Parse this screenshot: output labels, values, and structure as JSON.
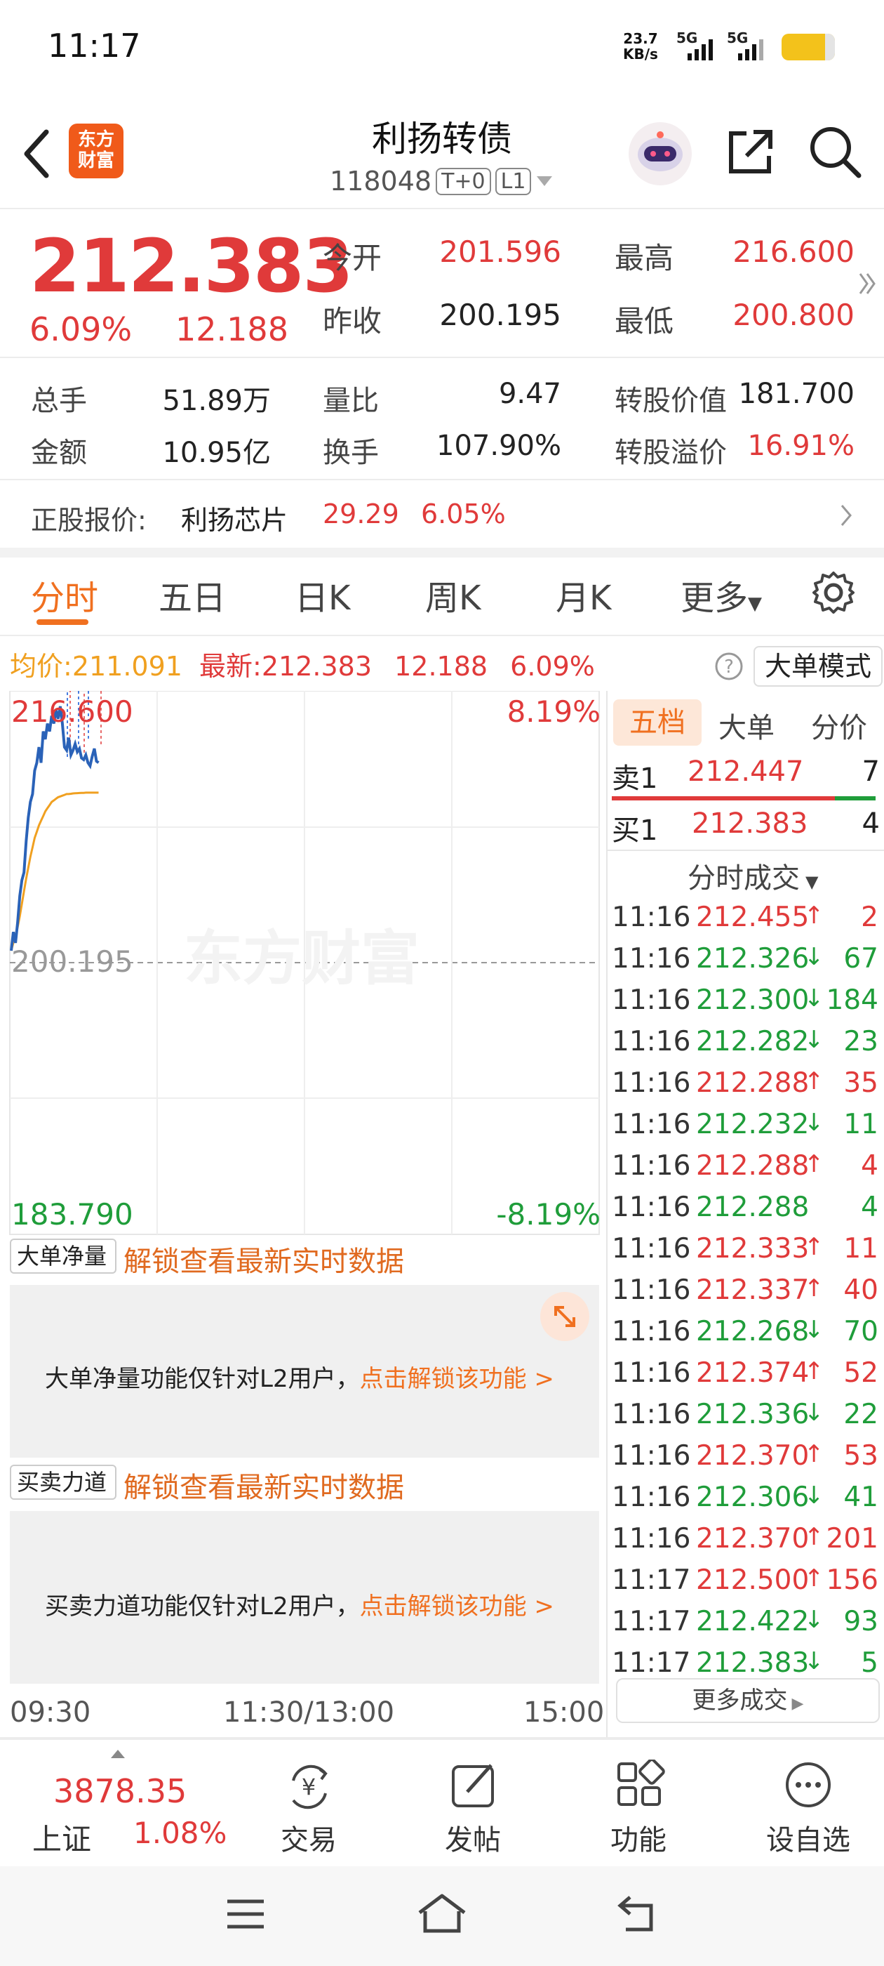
{
  "status_bar": {
    "time": "11:17",
    "net_speed_value": "23.7",
    "net_speed_unit": "KB/s",
    "signal1": "5G",
    "signal2": "5G"
  },
  "header": {
    "title": "利扬转债",
    "code": "118048",
    "tag1": "T+0",
    "tag2": "L1",
    "logo_line1": "东方",
    "logo_line2": "财富"
  },
  "quote": {
    "price": "212.383",
    "change_pct": "6.09%",
    "change_amt": "12.188",
    "open_label": "今开",
    "open_value": "201.596",
    "high_label": "最高",
    "high_value": "216.600",
    "prev_close_label": "昨收",
    "prev_close_value": "200.195",
    "low_label": "最低",
    "low_value": "200.800"
  },
  "fundamentals": {
    "volume_label": "总手",
    "volume_value": "51.89万",
    "vol_ratio_label": "量比",
    "vol_ratio_value": "9.47",
    "conv_value_label": "转股价值",
    "conv_value_value": "181.700",
    "amount_label": "金额",
    "amount_value": "10.95亿",
    "turnover_label": "换手",
    "turnover_value": "107.90%",
    "premium_label": "转股溢价",
    "premium_value": "16.91%"
  },
  "underlying": {
    "label": "正股报价:",
    "name": "利扬芯片",
    "price": "29.29",
    "pct": "6.05%"
  },
  "tabs": [
    "分时",
    "五日",
    "日K",
    "周K",
    "月K",
    "更多"
  ],
  "info_bar": {
    "avg_label": "均价:",
    "avg_value": "211.091",
    "latest_label": "最新:",
    "latest_value": "212.383",
    "latest_amt": "12.188",
    "latest_pct": "6.09%",
    "mode_button": "大单模式"
  },
  "chart_labels": {
    "top_price": "216.600",
    "top_pct": "8.19%",
    "mid_price": "200.195",
    "bottom_price": "183.790",
    "bottom_pct": "-8.19%",
    "time_start": "09:30",
    "time_mid": "11:30/13:00",
    "time_end": "15:00",
    "watermark": "东方财富"
  },
  "chart_data": {
    "type": "line",
    "series": [
      {
        "values": [
          201.0,
          202.2,
          201.5,
          202.8,
          204.5,
          205.5,
          206.0,
          208.0,
          209.5,
          210.5,
          211.0,
          212.5,
          213.0,
          214.0,
          213.0,
          215.0,
          214.5,
          215.5,
          215.0,
          216.0,
          215.5,
          216.4,
          215.8,
          216.6,
          215.5,
          214.0,
          213.8,
          214.6,
          213.5,
          213.8,
          214.2,
          213.7,
          213.9,
          213.3,
          213.2,
          213.5,
          213.0,
          212.8,
          213.4,
          213.9,
          213.1,
          213.0
        ]
      },
      {
        "values": [
          201.0,
          201.5,
          202.0,
          202.5,
          203.2,
          204.0,
          204.8,
          205.6,
          206.3,
          207.0,
          207.6,
          208.2,
          208.6,
          209.0,
          209.3,
          209.6,
          209.9,
          210.1,
          210.3,
          210.5,
          210.6,
          210.7,
          210.8,
          210.85,
          210.9,
          210.95,
          211.0,
          211.0,
          211.02,
          211.04,
          211.05,
          211.06,
          211.07,
          211.08,
          211.08,
          211.09,
          211.09,
          211.09,
          211.09,
          211.09,
          211.09,
          211.09
        ]
      }
    ],
    "ylim": [
      183.79,
      216.6
    ],
    "baseline": 200.195
  },
  "bs_markers": [
    "S",
    "B",
    "S",
    "B",
    "S",
    "B"
  ],
  "lock_sections": [
    {
      "dropdown": "大单净量",
      "unlock_text": "解锁查看最新实时数据",
      "desc": "大单净量功能仅针对L2用户，",
      "link": "点击解锁该功能 >"
    },
    {
      "dropdown": "买卖力道",
      "unlock_text": "解锁查看最新实时数据",
      "desc": "买卖力道功能仅针对L2用户，",
      "link": "点击解锁该功能 >"
    }
  ],
  "right_panel": {
    "tabs": [
      "五档",
      "大单",
      "分价"
    ],
    "sell1_label": "卖1",
    "sell1_price": "212.447",
    "sell1_qty": "7",
    "buy1_label": "买1",
    "buy1_price": "212.383",
    "buy1_qty": "4",
    "trades_header": "分时成交",
    "more_trades": "更多成交",
    "trades": [
      {
        "t": "11:16",
        "p": "212.455",
        "d": "↑",
        "q": "2",
        "c": "red"
      },
      {
        "t": "11:16",
        "p": "212.326",
        "d": "↓",
        "q": "67",
        "c": "green"
      },
      {
        "t": "11:16",
        "p": "212.300",
        "d": "↓",
        "q": "184",
        "c": "green"
      },
      {
        "t": "11:16",
        "p": "212.282",
        "d": "↓",
        "q": "23",
        "c": "green"
      },
      {
        "t": "11:16",
        "p": "212.288",
        "d": "↑",
        "q": "35",
        "c": "red"
      },
      {
        "t": "11:16",
        "p": "212.232",
        "d": "↓",
        "q": "11",
        "c": "green"
      },
      {
        "t": "11:16",
        "p": "212.288",
        "d": "↑",
        "q": "4",
        "c": "red"
      },
      {
        "t": "11:16",
        "p": "212.288",
        "d": "",
        "q": "4",
        "c": "green"
      },
      {
        "t": "11:16",
        "p": "212.333",
        "d": "↑",
        "q": "11",
        "c": "red"
      },
      {
        "t": "11:16",
        "p": "212.337",
        "d": "↑",
        "q": "40",
        "c": "red"
      },
      {
        "t": "11:16",
        "p": "212.268",
        "d": "↓",
        "q": "70",
        "c": "green"
      },
      {
        "t": "11:16",
        "p": "212.374",
        "d": "↑",
        "q": "52",
        "c": "red"
      },
      {
        "t": "11:16",
        "p": "212.336",
        "d": "↓",
        "q": "22",
        "c": "green"
      },
      {
        "t": "11:16",
        "p": "212.370",
        "d": "↑",
        "q": "53",
        "c": "red"
      },
      {
        "t": "11:16",
        "p": "212.306",
        "d": "↓",
        "q": "41",
        "c": "green"
      },
      {
        "t": "11:16",
        "p": "212.370",
        "d": "↑",
        "q": "201",
        "c": "red"
      },
      {
        "t": "11:17",
        "p": "212.500",
        "d": "↑",
        "q": "156",
        "c": "red"
      },
      {
        "t": "11:17",
        "p": "212.422",
        "d": "↓",
        "q": "93",
        "c": "green"
      },
      {
        "t": "11:17",
        "p": "212.383",
        "d": "↓",
        "q": "5",
        "c": "green"
      }
    ]
  },
  "bottom_nav": {
    "index_value": "3878.35",
    "index_name": "上证",
    "index_pct": "1.08%",
    "items": [
      "交易",
      "发帖",
      "功能",
      "设自选"
    ]
  },
  "colors": {
    "up": "#e03a3a",
    "down": "#1f9d3a",
    "accent": "#f07020",
    "line": "#2a62b8",
    "avg": "#f0a020"
  }
}
